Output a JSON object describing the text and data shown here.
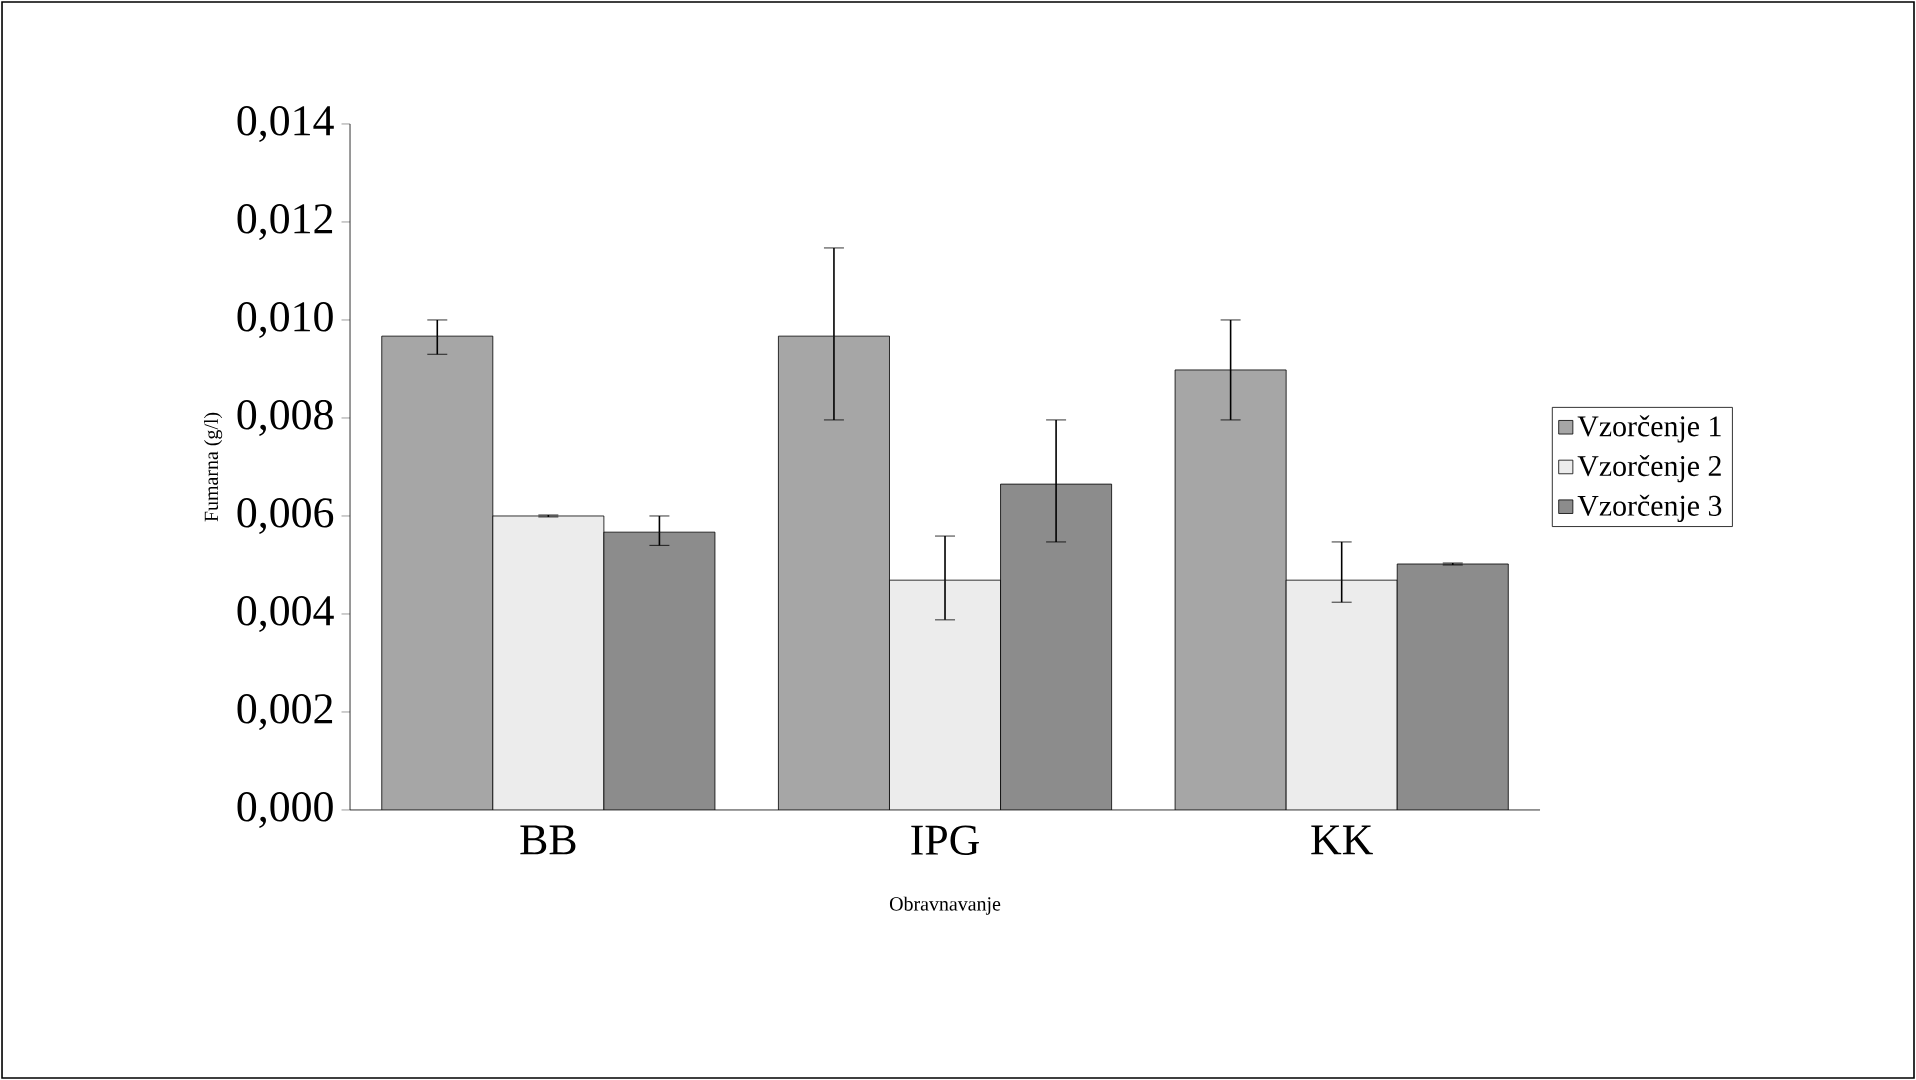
{
  "chart_data": {
    "type": "bar",
    "xlabel": "Obravnavanje",
    "ylabel": "Fumarna (g/l)",
    "categories": [
      "BB",
      "IPG",
      "KK"
    ],
    "series": [
      {
        "name": "Vzorčenje 1",
        "color": "#a6a6a6",
        "values": [
          0.00967,
          0.00967,
          0.00898
        ],
        "errors": [
          [
            0.0093,
            0.01
          ],
          [
            0.00796,
            0.01147
          ],
          [
            0.00796,
            0.01
          ]
        ]
      },
      {
        "name": "Vzorčenje 2",
        "color": "#ececec",
        "values": [
          0.006,
          0.00469,
          0.00469
        ],
        "errors": [
          [
            0.00598,
            0.00602
          ],
          [
            0.00388,
            0.00559
          ],
          [
            0.00424,
            0.00547
          ]
        ]
      },
      {
        "name": "Vzorčenje 3",
        "color": "#8c8c8c",
        "values": [
          0.00567,
          0.00665,
          0.00502
        ],
        "errors": [
          [
            0.0054,
            0.006
          ],
          [
            0.00547,
            0.00796
          ],
          [
            0.005,
            0.00504
          ]
        ]
      }
    ],
    "ylim": [
      0,
      0.014
    ],
    "yticks": [
      {
        "value": 0,
        "label": "0,000"
      },
      {
        "value": 0.002,
        "label": "0,002"
      },
      {
        "value": 0.004,
        "label": "0,004"
      },
      {
        "value": 0.006,
        "label": "0,006"
      },
      {
        "value": 0.008,
        "label": "0,008"
      },
      {
        "value": 0.01,
        "label": "0,010"
      },
      {
        "value": 0.012,
        "label": "0,012"
      },
      {
        "value": 0.014,
        "label": "0,014"
      }
    ],
    "grid": false,
    "legend": "right"
  }
}
